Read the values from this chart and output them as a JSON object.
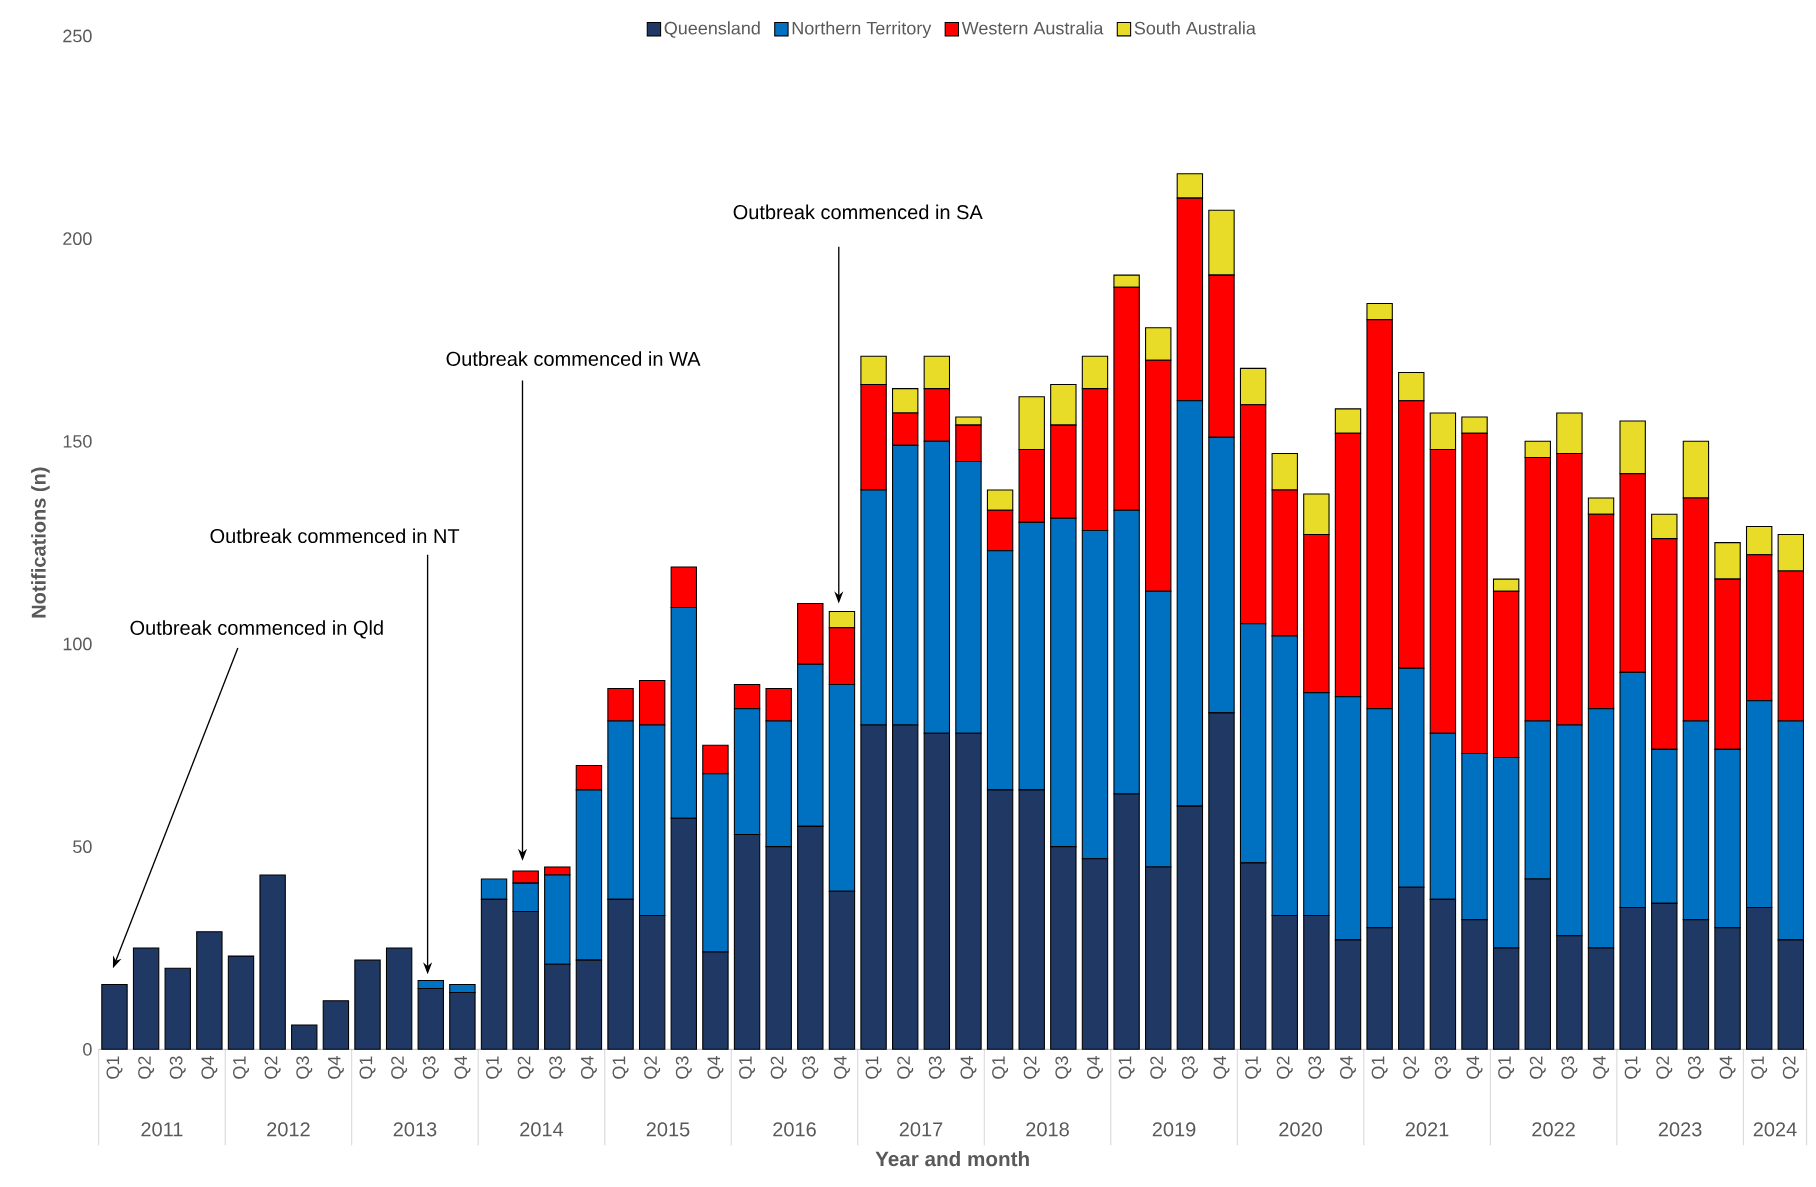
{
  "chart_data": {
    "type": "bar",
    "stacked": true,
    "xlabel": "Year and month",
    "ylabel": "Notifications (n)",
    "legend": "top",
    "categories": [
      "Q1",
      "Q2",
      "Q3",
      "Q4",
      "Q1",
      "Q2",
      "Q3",
      "Q4",
      "Q1",
      "Q2",
      "Q3",
      "Q4",
      "Q1",
      "Q2",
      "Q3",
      "Q4",
      "Q1",
      "Q2",
      "Q3",
      "Q4",
      "Q1",
      "Q2",
      "Q3",
      "Q4",
      "Q1",
      "Q2",
      "Q3",
      "Q4",
      "Q1",
      "Q2",
      "Q3",
      "Q4",
      "Q1",
      "Q2",
      "Q3",
      "Q4",
      "Q1",
      "Q2",
      "Q3",
      "Q4",
      "Q1",
      "Q2",
      "Q3",
      "Q4",
      "Q1",
      "Q2",
      "Q3",
      "Q4",
      "Q1",
      "Q2",
      "Q3",
      "Q4",
      "Q1",
      "Q2"
    ],
    "ylim": [
      0,
      250
    ],
    "yticks": [
      0,
      50,
      100,
      150,
      200,
      250
    ],
    "series": [
      {
        "name": "Queensland",
        "color": "#1f3864",
        "values": [
          16,
          25,
          20,
          29,
          23,
          43,
          6,
          12,
          22,
          25,
          15,
          14,
          37,
          34,
          21,
          22,
          37,
          33,
          57,
          24,
          53,
          50,
          55,
          39,
          80,
          80,
          78,
          78,
          64,
          64,
          50,
          47,
          63,
          45,
          60,
          83,
          46,
          33,
          33,
          27,
          30,
          40,
          37,
          32,
          25,
          42,
          28,
          25,
          35,
          36,
          32,
          30,
          35,
          27
        ]
      },
      {
        "name": "Northern Territory",
        "color": "#0070c0",
        "values": [
          0,
          0,
          0,
          0,
          0,
          0,
          0,
          0,
          0,
          0,
          2,
          2,
          5,
          7,
          22,
          42,
          44,
          47,
          52,
          44,
          31,
          31,
          40,
          51,
          58,
          69,
          72,
          67,
          59,
          66,
          81,
          81,
          70,
          68,
          100,
          68,
          59,
          69,
          55,
          60,
          54,
          54,
          41,
          41,
          47,
          39,
          52,
          59,
          58,
          38,
          49,
          44,
          51,
          54
        ]
      },
      {
        "name": "Western Australia",
        "color": "#ff0000",
        "values": [
          0,
          0,
          0,
          0,
          0,
          0,
          0,
          0,
          0,
          0,
          0,
          0,
          0,
          3,
          2,
          6,
          8,
          11,
          10,
          7,
          6,
          8,
          15,
          14,
          26,
          8,
          13,
          9,
          10,
          18,
          23,
          35,
          55,
          57,
          50,
          40,
          54,
          36,
          39,
          65,
          96,
          66,
          70,
          79,
          41,
          65,
          67,
          48,
          49,
          52,
          55,
          42,
          36,
          37
        ]
      },
      {
        "name": "South Australia",
        "color": "#e8dc28",
        "values": [
          0,
          0,
          0,
          0,
          0,
          0,
          0,
          0,
          0,
          0,
          0,
          0,
          0,
          0,
          0,
          0,
          0,
          0,
          0,
          0,
          0,
          0,
          0,
          4,
          7,
          6,
          8,
          2,
          5,
          13,
          10,
          8,
          3,
          8,
          6,
          16,
          9,
          9,
          10,
          6,
          4,
          7,
          9,
          4,
          3,
          4,
          10,
          4,
          13,
          6,
          14,
          9,
          7,
          9
        ]
      }
    ],
    "annotations": [
      "Outbreak commenced in Qld",
      "Outbreak commenced in NT",
      "Outbreak commenced in WA",
      "Outbreak commenced in SA",
      "2011",
      "2012",
      "2013",
      "2014",
      "2015",
      "2016",
      "2017",
      "2018",
      "2019",
      "2020",
      "2021",
      "2022",
      "2023",
      "2024"
    ]
  }
}
